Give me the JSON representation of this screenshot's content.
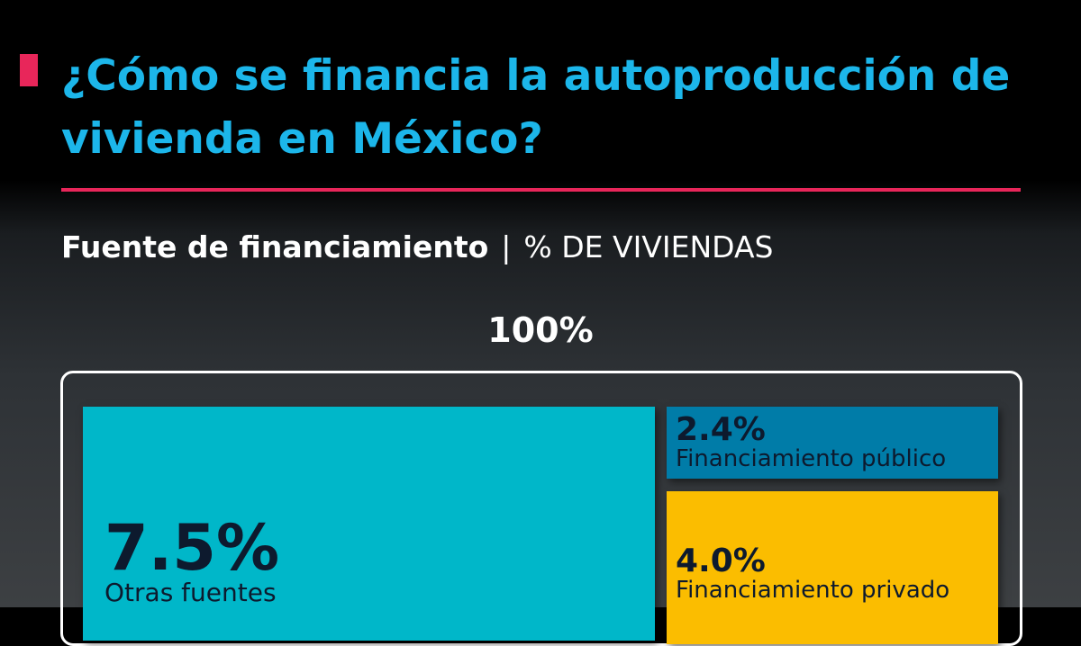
{
  "header": {
    "title": "¿Cómo se financia la autoproducción de vivienda en México?"
  },
  "subtitle": {
    "main": "Fuente de financiamiento",
    "separator": "|",
    "unit": "% DE VIVIENDAS"
  },
  "colors": {
    "accent": "#e8265a",
    "title": "#1cb6ea",
    "otras": "#00b7c9",
    "publico": "#007ca8",
    "privado": "#fbbd00"
  },
  "chart_data": {
    "type": "treemap",
    "title": "¿Cómo se financia la autoproducción de vivienda en México?",
    "total_label": "100%",
    "cells": [
      {
        "name": "Otras fuentes",
        "value": 7.5,
        "label": "7.5%"
      },
      {
        "name": "Financiamiento público",
        "value": 2.4,
        "label": "2.4%"
      },
      {
        "name": "Financiamiento privado",
        "value": 4.0,
        "label": "4.0%"
      }
    ]
  }
}
